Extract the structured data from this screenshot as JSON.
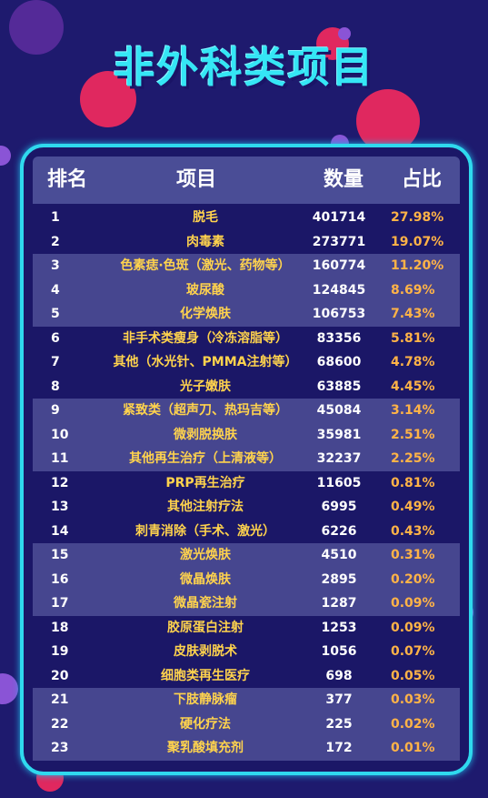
{
  "title": "非外科类项目",
  "colors": {
    "background": "#1e1a6e",
    "accent": "#2fd9ee",
    "header_bg": "#4a4d96",
    "item_text": "#ffd34d",
    "pct_text": "#ffb347"
  },
  "chart_data": {
    "type": "table",
    "title": "非外科类项目",
    "columns": [
      "排名",
      "项目",
      "数量",
      "占比"
    ],
    "rows": [
      {
        "rank": "1",
        "item": "脱毛",
        "count": "401714",
        "pct": "27.98%"
      },
      {
        "rank": "2",
        "item": "肉毒素",
        "count": "273771",
        "pct": "19.07%"
      },
      {
        "rank": "3",
        "item": "色素痣·色斑（激光、药物等）",
        "count": "160774",
        "pct": "11.20%"
      },
      {
        "rank": "4",
        "item": "玻尿酸",
        "count": "124845",
        "pct": "8.69%"
      },
      {
        "rank": "5",
        "item": "化学焕肤",
        "count": "106753",
        "pct": "7.43%"
      },
      {
        "rank": "6",
        "item": "非手术类瘦身（冷冻溶脂等）",
        "count": "83356",
        "pct": "5.81%"
      },
      {
        "rank": "7",
        "item": "其他（水光针、PMMA注射等）",
        "count": "68600",
        "pct": "4.78%"
      },
      {
        "rank": "8",
        "item": "光子嫩肤",
        "count": "63885",
        "pct": "4.45%"
      },
      {
        "rank": "9",
        "item": "紧致类（超声刀、热玛吉等）",
        "count": "45084",
        "pct": "3.14%"
      },
      {
        "rank": "10",
        "item": "微剥脱换肤",
        "count": "35981",
        "pct": "2.51%"
      },
      {
        "rank": "11",
        "item": "其他再生治疗（上清液等）",
        "count": "32237",
        "pct": "2.25%"
      },
      {
        "rank": "12",
        "item": "PRP再生治疗",
        "count": "11605",
        "pct": "0.81%"
      },
      {
        "rank": "13",
        "item": "其他注射疗法",
        "count": "6995",
        "pct": "0.49%"
      },
      {
        "rank": "14",
        "item": "刺青消除（手术、激光）",
        "count": "6226",
        "pct": "0.43%"
      },
      {
        "rank": "15",
        "item": "激光焕肤",
        "count": "4510",
        "pct": "0.31%"
      },
      {
        "rank": "16",
        "item": "微晶焕肤",
        "count": "2895",
        "pct": "0.20%"
      },
      {
        "rank": "17",
        "item": "微晶瓷注射",
        "count": "1287",
        "pct": "0.09%"
      },
      {
        "rank": "18",
        "item": "胶原蛋白注射",
        "count": "1253",
        "pct": "0.09%"
      },
      {
        "rank": "19",
        "item": "皮肤剥脱术",
        "count": "1056",
        "pct": "0.07%"
      },
      {
        "rank": "20",
        "item": "细胞类再生医疗",
        "count": "698",
        "pct": "0.05%"
      },
      {
        "rank": "21",
        "item": "下肢静脉瘤",
        "count": "377",
        "pct": "0.03%"
      },
      {
        "rank": "22",
        "item": "硬化疗法",
        "count": "225",
        "pct": "0.02%"
      },
      {
        "rank": "23",
        "item": "聚乳酸填充剂",
        "count": "172",
        "pct": "0.01%"
      }
    ]
  }
}
